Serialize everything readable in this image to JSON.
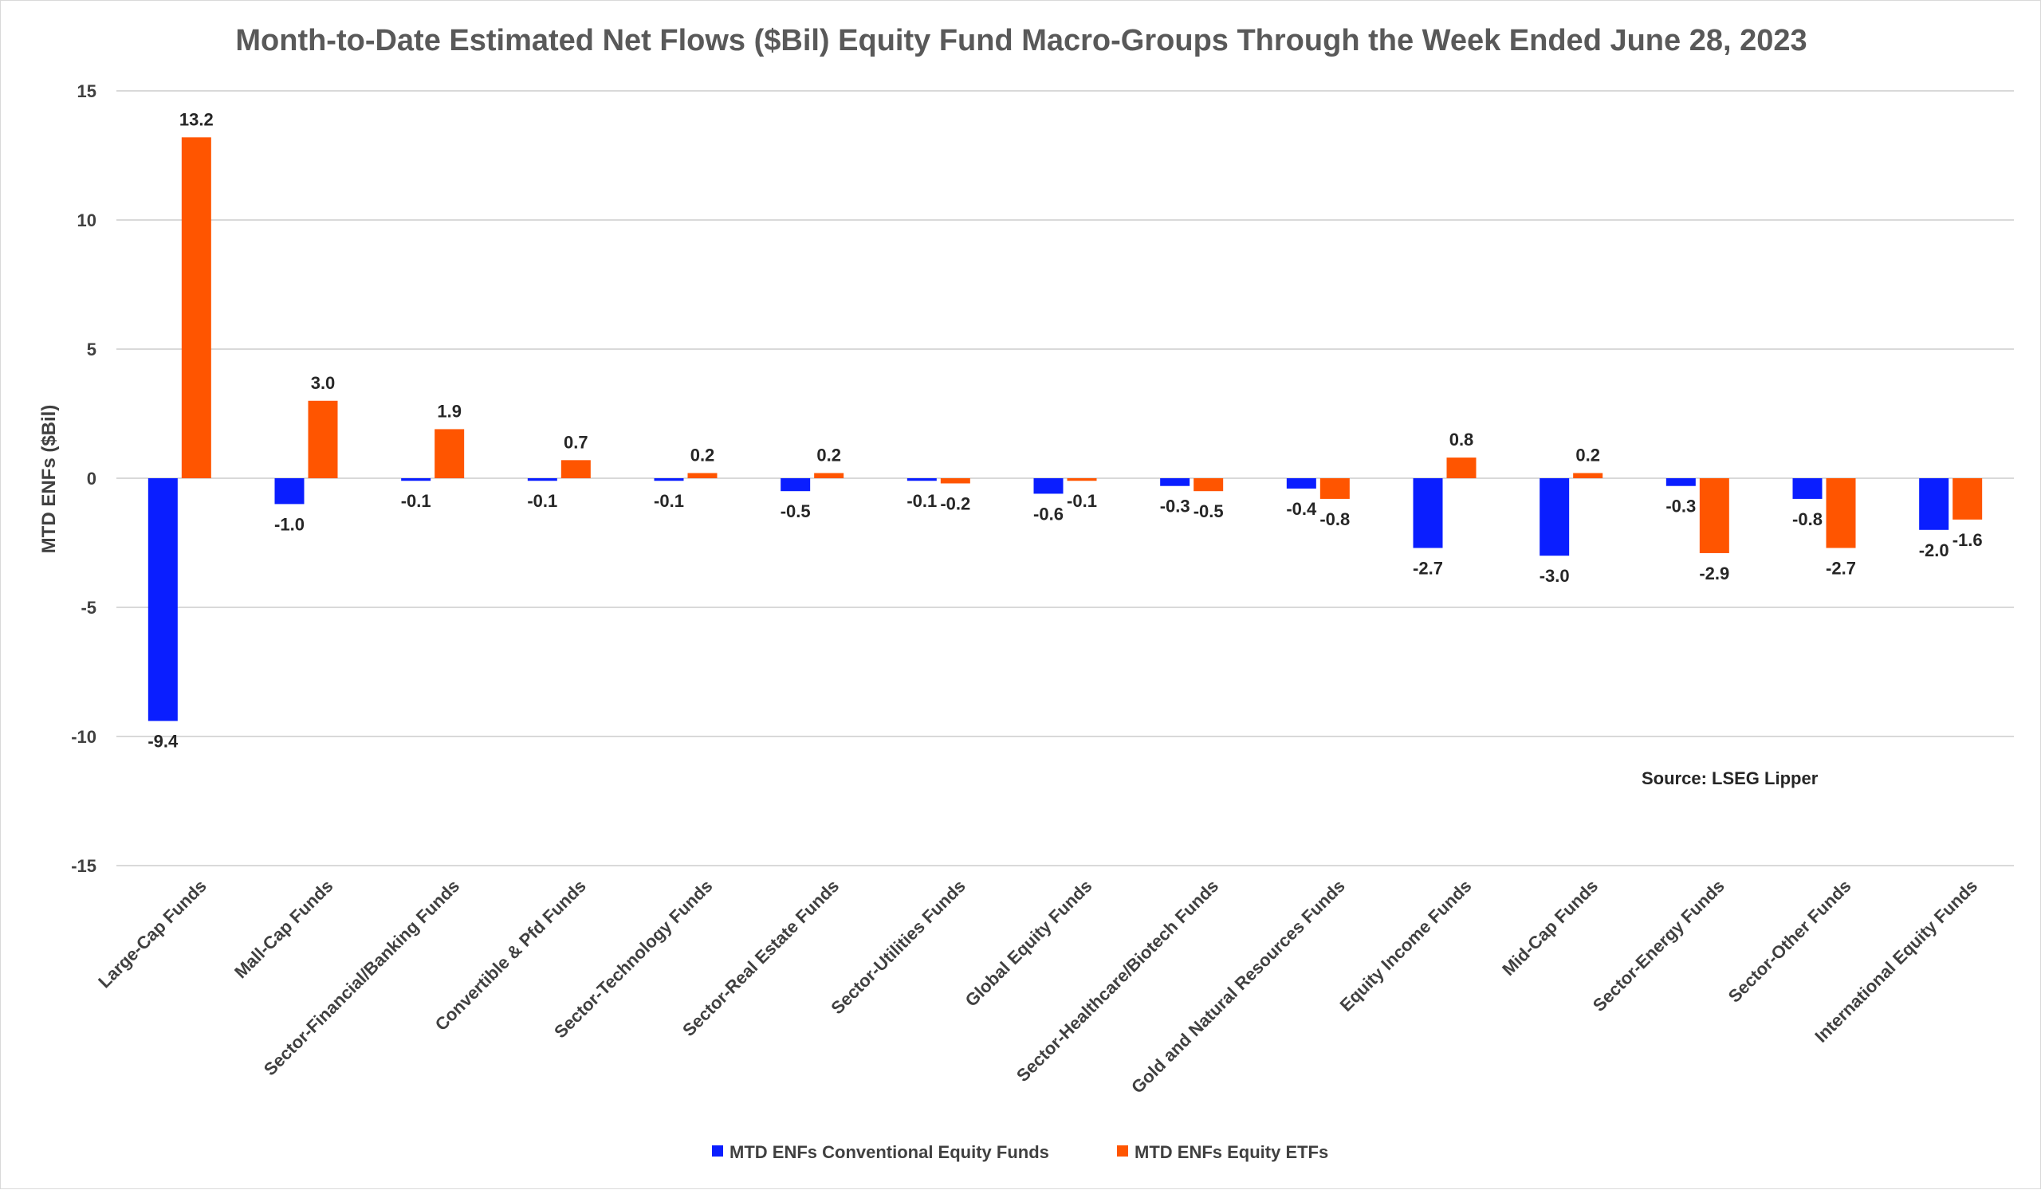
{
  "chart_data": {
    "type": "bar",
    "title": "Month-to-Date Estimated Net Flows ($Bil) Equity Fund Macro-Groups Through the Week Ended June 28, 2023",
    "xlabel": "",
    "ylabel": "MTD ENFs ($Bil)",
    "ylim": [
      -15,
      15
    ],
    "yticks": [
      15,
      10,
      5,
      0,
      -5,
      -10,
      -15
    ],
    "grid": true,
    "legend_position": "bottom",
    "source": "Source: LSEG Lipper",
    "categories": [
      "Large-Cap Funds",
      "Mall-Cap Funds",
      "Sector-Financial/Banking Funds",
      "Convertible & Pfd Funds",
      "Sector-Technology Funds",
      "Sector-Real Estate Funds",
      "Sector-Utilities Funds",
      "Global Equity Funds",
      "Sector-Healthcare/Biotech Funds",
      "Gold and Natural Resources Funds",
      "Equity Income Funds",
      "Mid-Cap Funds",
      "Sector-Energy Funds",
      "Sector-Other Funds",
      "International Equity Funds"
    ],
    "series": [
      {
        "name": "MTD ENFs Conventional Equity Funds",
        "color": "#0a1eff",
        "values": [
          -9.4,
          -1.0,
          -0.1,
          -0.1,
          -0.1,
          -0.5,
          -0.1,
          -0.6,
          -0.3,
          -0.4,
          -2.7,
          -3.0,
          -0.3,
          -0.8,
          -2.0
        ],
        "labels": [
          "-9.4",
          "-1.0",
          "-0.1",
          "-0.1",
          "-0.1",
          "-0.5",
          "-0.1",
          "-0.6",
          "-0.3",
          "-0.4",
          "-2.7",
          "-3.0",
          "-0.3",
          "-0.8",
          "-2.0"
        ]
      },
      {
        "name": "MTD ENFs Equity ETFs",
        "color": "#ff5500",
        "values": [
          13.2,
          3.0,
          1.9,
          0.7,
          0.2,
          0.2,
          -0.2,
          -0.1,
          -0.5,
          -0.8,
          0.8,
          0.2,
          -2.9,
          -2.7,
          -1.6
        ],
        "labels": [
          "13.2",
          "3.0",
          "1.9",
          "0.7",
          "0.2",
          "0.2",
          "-0.2",
          "-0.1",
          "-0.5",
          "-0.8",
          "0.8",
          "0.2",
          "-2.9",
          "-2.7",
          "-1.6"
        ]
      }
    ]
  }
}
